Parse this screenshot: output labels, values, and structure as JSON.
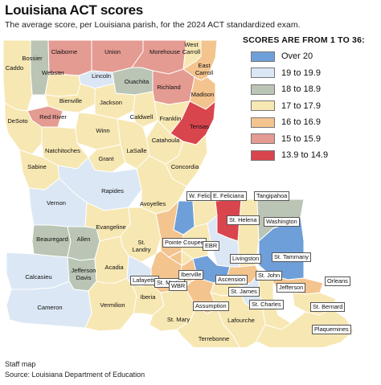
{
  "header": {
    "title": "Louisiana ACT scores",
    "subtitle": "The average score, per Louisiana parish, for the 2024 ACT standardized exam."
  },
  "legend": {
    "title": "SCORES ARE FROM 1 TO 36:",
    "items": [
      {
        "label": "Over 20",
        "color": "#6f9fd8"
      },
      {
        "label": "19 to 19.9",
        "color": "#dbe7f4"
      },
      {
        "label": "18 to 18.9",
        "color": "#bac5b5"
      },
      {
        "label": "17 to 17.9",
        "color": "#f7e7b2"
      },
      {
        "label": "16 to 16.9",
        "color": "#f4c48e"
      },
      {
        "label": "15 to 15.9",
        "color": "#e49b92"
      },
      {
        "label": "13.9 to 14.9",
        "color": "#d9454d"
      }
    ]
  },
  "map": {
    "water_color": "#ffffff",
    "border_color": "#ffffff",
    "parishes": [
      {
        "name": "Bossier",
        "band": 2
      },
      {
        "name": "Claiborne",
        "band": 5
      },
      {
        "name": "Union",
        "band": 5
      },
      {
        "name": "Morehouse",
        "band": 5
      },
      {
        "name": "West Carroll",
        "band": 3
      },
      {
        "name": "East Carroll",
        "band": 4
      },
      {
        "name": "Caddo",
        "band": 3
      },
      {
        "name": "Webster",
        "band": 3
      },
      {
        "name": "Lincoln",
        "band": 1
      },
      {
        "name": "Ouachita",
        "band": 2
      },
      {
        "name": "Richland",
        "band": 5
      },
      {
        "name": "Madison",
        "band": 4
      },
      {
        "name": "Bienville",
        "band": 3
      },
      {
        "name": "Jackson",
        "band": 3
      },
      {
        "name": "DeSoto",
        "band": 3
      },
      {
        "name": "Red River",
        "band": 5
      },
      {
        "name": "Caldwell",
        "band": 3
      },
      {
        "name": "Franklin",
        "band": 3
      },
      {
        "name": "Tensas",
        "band": 6
      },
      {
        "name": "Winn",
        "band": 3
      },
      {
        "name": "Natchitoches",
        "band": 3
      },
      {
        "name": "Catahoula",
        "band": 3
      },
      {
        "name": "LaSalle",
        "band": 3
      },
      {
        "name": "Sabine",
        "band": 3
      },
      {
        "name": "Grant",
        "band": 3
      },
      {
        "name": "Concordia",
        "band": 3
      },
      {
        "name": "Rapides",
        "band": 1
      },
      {
        "name": "Vernon",
        "band": 1
      },
      {
        "name": "Avoyelles",
        "band": 3
      },
      {
        "name": "W. Feliciana",
        "band": 0
      },
      {
        "name": "E. Feliciana",
        "band": 3
      },
      {
        "name": "Tangipahoa",
        "band": 3
      },
      {
        "name": "St. Helena",
        "band": 6
      },
      {
        "name": "Washington",
        "band": 2
      },
      {
        "name": "Beauregard",
        "band": 2
      },
      {
        "name": "Allen",
        "band": 2
      },
      {
        "name": "Evangeline",
        "band": 3
      },
      {
        "name": "St. Landry",
        "band": 3
      },
      {
        "name": "Pointe Coupee",
        "band": 4
      },
      {
        "name": "EBR",
        "band": 3
      },
      {
        "name": "Livingston",
        "band": 1
      },
      {
        "name": "St. Tammany",
        "band": 0
      },
      {
        "name": "Calcasieu",
        "band": 1
      },
      {
        "name": "Jefferson Davis",
        "band": 2
      },
      {
        "name": "Acadia",
        "band": 3
      },
      {
        "name": "Lafayette",
        "band": 1
      },
      {
        "name": "St. Martin",
        "band": 4
      },
      {
        "name": "Iberville",
        "band": 4
      },
      {
        "name": "WBR",
        "band": 3
      },
      {
        "name": "Ascension",
        "band": 0
      },
      {
        "name": "St. John",
        "band": 4
      },
      {
        "name": "St. James",
        "band": 3
      },
      {
        "name": "Jefferson",
        "band": 3
      },
      {
        "name": "Orleans",
        "band": 4
      },
      {
        "name": "St. Charles",
        "band": 1
      },
      {
        "name": "St. Bernard",
        "band": 3
      },
      {
        "name": "Cameron",
        "band": 1
      },
      {
        "name": "Vermilion",
        "band": 3
      },
      {
        "name": "Iberia",
        "band": 3
      },
      {
        "name": "Assumption",
        "band": 4
      },
      {
        "name": "St. Mary",
        "band": 3
      },
      {
        "name": "Lafourche",
        "band": 3
      },
      {
        "name": "Terrebonne",
        "band": 3
      },
      {
        "name": "Plaquemines",
        "band": 3
      }
    ]
  },
  "footer": {
    "credit": "Staff map",
    "source": "Source: Louisiana Department of Education"
  }
}
